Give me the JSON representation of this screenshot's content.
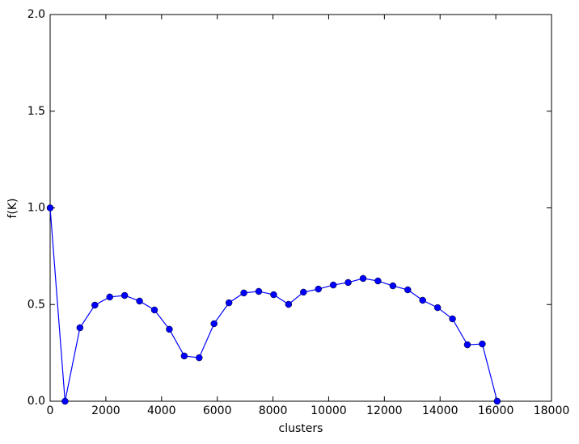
{
  "chart_data": {
    "type": "line",
    "x_label": "clusters",
    "y_label": "f(K)",
    "x": [
      0,
      535,
      1070,
      1605,
      2140,
      2675,
      3210,
      3745,
      4280,
      4815,
      5350,
      5885,
      6420,
      6955,
      7490,
      8025,
      8560,
      9095,
      9630,
      10165,
      10700,
      11235,
      11770,
      12305,
      12840,
      13375,
      13910,
      14445,
      14980,
      15515,
      16050
    ],
    "series": [
      {
        "color": "#0000ff",
        "values": [
          1.0,
          0.0,
          0.38,
          0.497,
          0.539,
          0.547,
          0.518,
          0.472,
          0.372,
          0.234,
          0.225,
          0.401,
          0.509,
          0.56,
          0.568,
          0.551,
          0.501,
          0.564,
          0.58,
          0.601,
          0.614,
          0.635,
          0.622,
          0.597,
          0.576,
          0.522,
          0.484,
          0.426,
          0.292,
          0.296,
          0.0
        ]
      }
    ],
    "xlim": [
      0,
      18000
    ],
    "xticks": [
      0,
      2000,
      4000,
      6000,
      8000,
      10000,
      12000,
      14000,
      16000,
      18000
    ],
    "ylim": [
      0,
      2.0
    ],
    "yticks": [
      {
        "value": 0,
        "label": "0.0"
      },
      0.5,
      {
        "value": 1,
        "label": "1.0"
      },
      1.5,
      {
        "value": 2,
        "label": "2.0"
      }
    ],
    "grid": false
  }
}
